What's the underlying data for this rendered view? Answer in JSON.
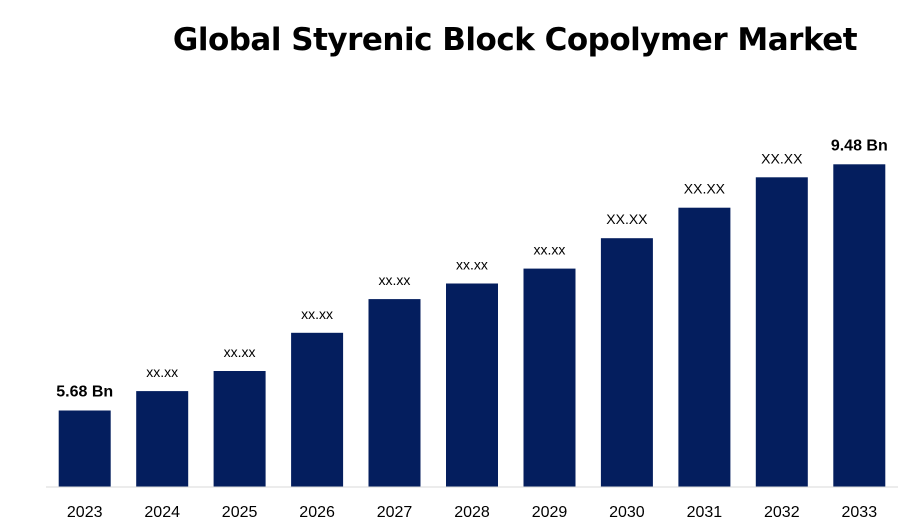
{
  "chart_data": {
    "type": "bar",
    "title": "Global Styrenic Block Copolymer Market",
    "xlabel": "",
    "ylabel": "",
    "categories": [
      "2023",
      "2024",
      "2025",
      "2026",
      "2027",
      "2028",
      "2029",
      "2030",
      "2031",
      "2032",
      "2033"
    ],
    "values": [
      5.68,
      5.98,
      6.29,
      6.88,
      7.4,
      7.64,
      7.87,
      8.34,
      8.81,
      9.28,
      9.48
    ],
    "data_labels": [
      "5.68 Bn",
      "xx.xx",
      "xx.xx",
      "xx.xx",
      "xx.xx",
      "xx.xx",
      "xx.xx",
      "XX.XX",
      "XX.XX",
      "XX.XX",
      "9.48 Bn"
    ],
    "emphasized_labels": [
      0,
      10
    ],
    "ylim": [
      4.5,
      9.5
    ],
    "grid": false,
    "legend": "none",
    "bar_color": "#041e5e"
  }
}
